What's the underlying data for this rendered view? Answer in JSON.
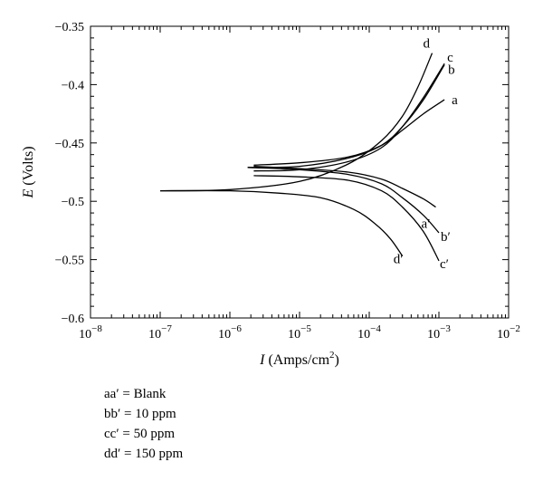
{
  "chart_data": {
    "type": "line",
    "x_scale": "log",
    "xlim": [
      1e-08,
      0.01
    ],
    "ylim": [
      -0.6,
      -0.35
    ],
    "x_ticks": [
      {
        "value": 1e-08,
        "base": "10",
        "exp": "−8"
      },
      {
        "value": 1e-07,
        "base": "10",
        "exp": "−7"
      },
      {
        "value": 1e-06,
        "base": "10",
        "exp": "−6"
      },
      {
        "value": 1e-05,
        "base": "10",
        "exp": "−5"
      },
      {
        "value": 0.0001,
        "base": "10",
        "exp": "−4"
      },
      {
        "value": 0.001,
        "base": "10",
        "exp": "−3"
      },
      {
        "value": 0.01,
        "base": "10",
        "exp": "−2"
      }
    ],
    "y_ticks": [
      {
        "value": -0.35,
        "label": "−0.35"
      },
      {
        "value": -0.4,
        "label": "−0.4"
      },
      {
        "value": -0.45,
        "label": "−0.45"
      },
      {
        "value": -0.5,
        "label": "−0.5"
      },
      {
        "value": -0.55,
        "label": "−0.55"
      },
      {
        "value": -0.6,
        "label": "−0.6"
      }
    ],
    "xlabel": {
      "italic": "I",
      "text": " (Amps/cm",
      "sup": "2",
      "close": ")"
    },
    "ylabel": {
      "italic": "E",
      "text": " (Volts)"
    },
    "series": [
      {
        "id": "a",
        "label": "a",
        "x": [
          2.2e-06,
          1e-05,
          5e-05,
          0.00015,
          0.0003,
          0.0006,
          0.0012
        ],
        "y": [
          -0.469,
          -0.467,
          -0.462,
          -0.452,
          -0.439,
          -0.425,
          -0.413
        ]
      },
      {
        "id": "b",
        "label": "b",
        "x": [
          1.8e-06,
          1e-05,
          5e-05,
          0.00015,
          0.0003,
          0.0006,
          0.0012
        ],
        "y": [
          -0.471,
          -0.47,
          -0.463,
          -0.452,
          -0.436,
          -0.413,
          -0.383
        ]
      },
      {
        "id": "c",
        "label": "c",
        "x": [
          2.2e-06,
          1e-05,
          5e-05,
          0.00015,
          0.0003,
          0.0006,
          0.0012
        ],
        "y": [
          -0.474,
          -0.473,
          -0.466,
          -0.454,
          -0.436,
          -0.411,
          -0.382
        ]
      },
      {
        "id": "d",
        "label": "d",
        "x": [
          1e-07,
          1e-06,
          1e-05,
          5e-05,
          0.00015,
          0.0003,
          0.0005,
          0.0008
        ],
        "y": [
          -0.491,
          -0.49,
          -0.483,
          -0.468,
          -0.448,
          -0.427,
          -0.402,
          -0.373
        ]
      },
      {
        "id": "a-prime",
        "label": "a′",
        "x": [
          2.2e-06,
          1e-05,
          5e-05,
          0.00015,
          0.0003,
          0.0006,
          0.0009
        ],
        "y": [
          -0.47,
          -0.472,
          -0.475,
          -0.481,
          -0.489,
          -0.498,
          -0.505
        ]
      },
      {
        "id": "b-prime",
        "label": "b′",
        "x": [
          1.8e-06,
          1e-05,
          5e-05,
          0.00015,
          0.0003,
          0.0006,
          0.001
        ],
        "y": [
          -0.471,
          -0.473,
          -0.477,
          -0.485,
          -0.497,
          -0.512,
          -0.527
        ]
      },
      {
        "id": "c-prime",
        "label": "c′",
        "x": [
          2.2e-06,
          1e-05,
          5e-05,
          0.00015,
          0.0003,
          0.0006,
          0.001
        ],
        "y": [
          -0.478,
          -0.479,
          -0.482,
          -0.491,
          -0.505,
          -0.526,
          -0.551
        ]
      },
      {
        "id": "d-prime",
        "label": "d′",
        "x": [
          1e-07,
          1e-06,
          5e-06,
          2e-05,
          6e-05,
          0.00012,
          0.0002,
          0.0003
        ],
        "y": [
          -0.491,
          -0.491,
          -0.493,
          -0.497,
          -0.507,
          -0.519,
          -0.532,
          -0.547
        ]
      }
    ]
  },
  "legend": [
    {
      "key": "aa′",
      "value": "Blank"
    },
    {
      "key": "bb′",
      "value": "10 ppm"
    },
    {
      "key": "cc′",
      "value": "50 ppm"
    },
    {
      "key": "dd′",
      "value": "150 ppm"
    }
  ]
}
